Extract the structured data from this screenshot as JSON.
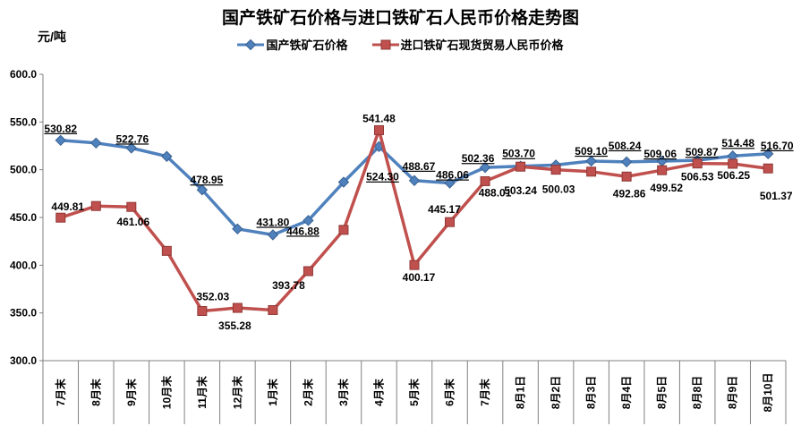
{
  "title": "国产铁矿石价格与进口铁矿石人民币价格走势图",
  "unit_label": "元/吨",
  "background_color": "#FFFFFF",
  "axis_color": "#808080",
  "text_color": "#000000",
  "chart_data": {
    "type": "line",
    "title": "国产铁矿石价格与进口铁矿石人民币价格走势图",
    "ylabel": "元/吨",
    "ylim": [
      300,
      600
    ],
    "ytick_step": 50,
    "ytick_labels": [
      "300.0",
      "350.0",
      "400.0",
      "450.0",
      "500.0",
      "550.0",
      "600.0"
    ],
    "grid": false,
    "legend_position": "top",
    "categories": [
      "7月末",
      "8月末",
      "9月末",
      "10月末",
      "11月末",
      "12月末",
      "1月末",
      "2月末",
      "3月末",
      "4月末",
      "5月末",
      "6月末",
      "7月末",
      "8月1日",
      "8月2日",
      "8月3日",
      "8月4日",
      "8月5日",
      "8月8日",
      "8月9日",
      "8月10日"
    ],
    "series": [
      {
        "name": "国产铁矿石价格",
        "marker": "diamond",
        "color": "#4F81BD",
        "marker_edge": "#3A6190",
        "line_width": 3.5,
        "label_underline": true,
        "values": [
          530.82,
          528,
          522.76,
          514,
          478.95,
          438,
          431.8,
          446.88,
          487,
          524.3,
          488.67,
          486.06,
          502.36,
          503.7,
          505,
          509.1,
          508.24,
          509.06,
          509.87,
          514.48,
          516.7
        ],
        "labels": [
          {
            "t": "530.82",
            "dx": 0,
            "dy": -9
          },
          null,
          {
            "t": "522.76",
            "dx": 1,
            "dy": -6
          },
          null,
          {
            "t": "478.95",
            "dx": 5,
            "dy": -7
          },
          null,
          {
            "t": "431.80",
            "dx": 0,
            "dy": -10
          },
          {
            "t": "446.88",
            "dx": -6,
            "dy": 16
          },
          null,
          {
            "t": "524.30",
            "dx": 4,
            "dy": 38
          },
          {
            "t": "488.67",
            "dx": 5,
            "dy": -12
          },
          {
            "t": "486.06",
            "dx": 3,
            "dy": -5
          },
          {
            "t": "502.36",
            "dx": -8,
            "dy": -6
          },
          {
            "t": "503.70",
            "dx": -2,
            "dy": -10
          },
          null,
          {
            "t": "509.10",
            "dx": 0,
            "dy": -7
          },
          {
            "t": "508.24",
            "dx": -2,
            "dy": -14
          },
          {
            "t": "509.06",
            "dx": -2,
            "dy": -4
          },
          {
            "t": "509.87",
            "dx": 5,
            "dy": -5
          },
          {
            "t": "514.48",
            "dx": 6,
            "dy": -10
          },
          {
            "t": "516.70",
            "dx": 10,
            "dy": -5
          }
        ]
      },
      {
        "name": "进口铁矿石现货贸易人民币价格",
        "marker": "square",
        "color": "#C0504D",
        "marker_edge": "#8F3836",
        "line_width": 3.5,
        "label_underline": false,
        "values": [
          449.81,
          462,
          461.06,
          415,
          352.03,
          355.28,
          353,
          393.78,
          437,
          541.48,
          400.17,
          445.17,
          488.01,
          503.24,
          500.03,
          498,
          492.86,
          499.52,
          506.53,
          506.25,
          501.37
        ],
        "labels": [
          {
            "t": "449.81",
            "dx": 8,
            "dy": -8
          },
          null,
          {
            "t": "461.06",
            "dx": 2,
            "dy": 21
          },
          null,
          {
            "t": "352.03",
            "dx": 12,
            "dy": -12
          },
          {
            "t": "355.28",
            "dx": -3,
            "dy": 24
          },
          null,
          {
            "t": "393.78",
            "dx": -22,
            "dy": 20
          },
          null,
          {
            "t": "541.48",
            "dx": 0,
            "dy": -9
          },
          {
            "t": "400.17",
            "dx": 5,
            "dy": 18
          },
          {
            "t": "445.17",
            "dx": -6,
            "dy": -10
          },
          {
            "t": "488.01",
            "dx": 11,
            "dy": 17
          },
          {
            "t": "503.24",
            "dx": 0,
            "dy": 31
          },
          {
            "t": "500.03",
            "dx": 3,
            "dy": 26
          },
          null,
          {
            "t": "492.86",
            "dx": 3,
            "dy": 23
          },
          {
            "t": "499.52",
            "dx": 5,
            "dy": 24
          },
          {
            "t": "506.53",
            "dx": 0,
            "dy": 19
          },
          {
            "t": "506.25",
            "dx": 1,
            "dy": 17
          },
          {
            "t": "501.37",
            "dx": 9,
            "dy": 35
          }
        ]
      }
    ]
  }
}
